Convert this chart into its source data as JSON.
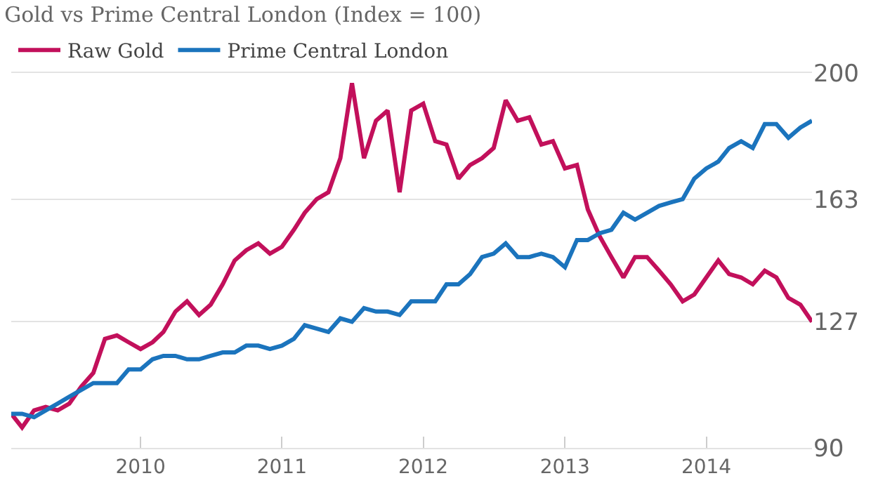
{
  "chart_data": {
    "type": "line",
    "title": "Gold vs Prime Central London (Index = 100)",
    "x": [
      "2009-02",
      "2009-03",
      "2009-04",
      "2009-05",
      "2009-06",
      "2009-07",
      "2009-08",
      "2009-09",
      "2009-10",
      "2009-11",
      "2009-12",
      "2010-01",
      "2010-02",
      "2010-03",
      "2010-04",
      "2010-05",
      "2010-06",
      "2010-07",
      "2010-08",
      "2010-09",
      "2010-10",
      "2010-11",
      "2010-12",
      "2011-01",
      "2011-02",
      "2011-03",
      "2011-04",
      "2011-05",
      "2011-06",
      "2011-07",
      "2011-08",
      "2011-09",
      "2011-10",
      "2011-11",
      "2011-12",
      "2012-01",
      "2012-02",
      "2012-03",
      "2012-04",
      "2012-05",
      "2012-06",
      "2012-07",
      "2012-08",
      "2012-09",
      "2012-10",
      "2012-11",
      "2012-12",
      "2013-01",
      "2013-02",
      "2013-03",
      "2013-04",
      "2013-05",
      "2013-06",
      "2013-07",
      "2013-08",
      "2013-09",
      "2013-10",
      "2013-11",
      "2013-12",
      "2014-01",
      "2014-02",
      "2014-03",
      "2014-04",
      "2014-05",
      "2014-06",
      "2014-07",
      "2014-08",
      "2014-09",
      "2014-10"
    ],
    "series": [
      {
        "name": "Raw Gold",
        "color": "#c2105b",
        "values": [
          100,
          96,
          101,
          102,
          101,
          103,
          108,
          112,
          122,
          123,
          121,
          119,
          121,
          124,
          130,
          133,
          129,
          132,
          138,
          145,
          148,
          150,
          147,
          149,
          154,
          159,
          163,
          165,
          175,
          197,
          175,
          186,
          189,
          165,
          189,
          191,
          180,
          179,
          169,
          173,
          175,
          178,
          192,
          186,
          187,
          179,
          180,
          172,
          173,
          160,
          152,
          146,
          140,
          146,
          146,
          142,
          138,
          133,
          135,
          140,
          145,
          141,
          140,
          138,
          142,
          140,
          134,
          132,
          127
        ]
      },
      {
        "name": "Prime Central London",
        "color": "#1b74bd",
        "values": [
          100,
          100,
          99,
          101,
          103,
          105,
          107,
          109,
          109,
          109,
          113,
          113,
          116,
          117,
          117,
          116,
          116,
          117,
          118,
          118,
          120,
          120,
          119,
          120,
          122,
          126,
          125,
          124,
          128,
          127,
          131,
          130,
          130,
          129,
          133,
          133,
          133,
          138,
          138,
          141,
          146,
          147,
          150,
          146,
          146,
          147,
          146,
          143,
          151,
          151,
          153,
          154,
          159,
          157,
          159,
          161,
          162,
          163,
          169,
          172,
          174,
          178,
          180,
          178,
          185,
          185,
          181,
          184,
          186
        ]
      }
    ],
    "xlim": [
      "2009-02",
      "2014-10"
    ],
    "xticks": [
      {
        "value": "2010-01",
        "label": "2010"
      },
      {
        "value": "2011-01",
        "label": "2011"
      },
      {
        "value": "2012-01",
        "label": "2012"
      },
      {
        "value": "2013-01",
        "label": "2013"
      },
      {
        "value": "2014-01",
        "label": "2014"
      }
    ],
    "ylim": [
      90,
      200
    ],
    "yticks": [
      90,
      127,
      163,
      200
    ],
    "grid": "y",
    "legend": "top left",
    "marker": "none",
    "line_style": "solid"
  }
}
